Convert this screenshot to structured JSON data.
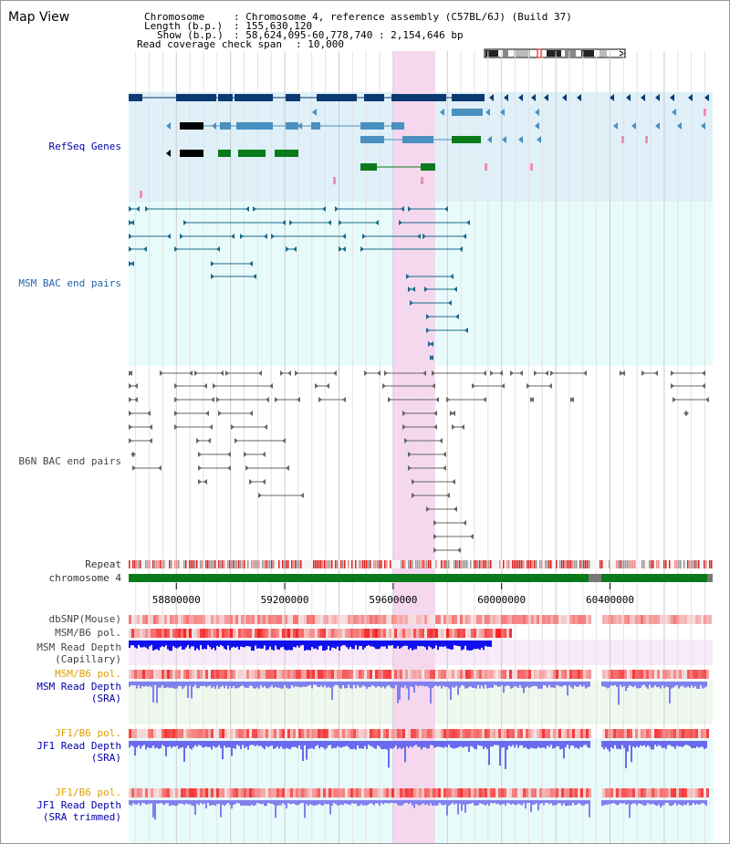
{
  "page": {
    "title": "Map View"
  },
  "info": {
    "chromosome_label": "Chromosome",
    "chromosome_value": ": Chromosome 4, reference assembly (C57BL/6J) (Build 37)",
    "length_label": "Length (b.p.)",
    "length_value": ": 155,630,120",
    "show_label": "Show (b.p.)",
    "show_value": ": 58,624,095-60,778,740 : 2,154,646 bp",
    "coverage_label": "Read coverage check span",
    "coverage_value": ": 10,000"
  },
  "tracks": {
    "refseq": "RefSeq Genes",
    "msm_bac": "MSM BAC end pairs",
    "b6n_bac": "B6N BAC end pairs",
    "repeat": "Repeat",
    "chromosome": "chromosome 4",
    "dbsnp": "dbSNP(Mouse)",
    "msm_b6_pol_1": "MSM/B6 pol.",
    "msm_read_depth_cap_1": "MSM Read Depth",
    "msm_read_depth_cap_2": "(Capillary)",
    "msm_b6_pol_2": "MSM/B6 pol.",
    "msm_read_depth_sra_1": "MSM Read Depth",
    "msm_read_depth_sra_2": "(SRA)",
    "jf1_b6_pol_1": "JF1/B6 pol.",
    "jf1_read_depth_sra_1": "JF1 Read Depth",
    "jf1_read_depth_sra_2": "(SRA)",
    "jf1_b6_pol_2": "JF1/B6 pol.",
    "jf1_read_depth_trim_1": "JF1 Read Depth",
    "jf1_read_depth_trim_2": "(SRA trimmed)"
  },
  "axis": {
    "ticks": [
      "58800000",
      "59200000",
      "59600000",
      "60000000",
      "60400000"
    ],
    "tick_values": [
      58800000,
      59200000,
      59600000,
      60000000,
      60400000
    ],
    "view_start": 58624095,
    "view_end": 60778740,
    "highlight_start": 59600000,
    "highlight_end": 59755000
  },
  "colors": {
    "refseq_dark": "#0b3a73",
    "refseq_mid": "#4a90c0",
    "refseq_green": "#0a7a1a",
    "bac_msm": "#1a6a8a",
    "bac_b6n": "#666666",
    "highlight": "#f7d7f0",
    "chrom_green": "#0a7a1a",
    "depth_capillary": "#1010ee",
    "depth_sra": "#8080ee",
    "snp_red": "#ee3333"
  }
}
